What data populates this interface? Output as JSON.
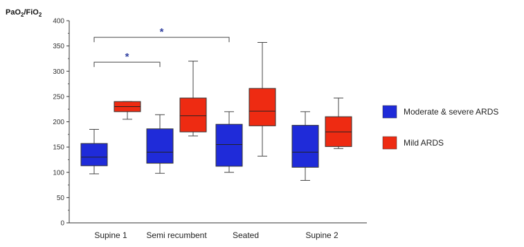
{
  "chart_data": {
    "type": "box",
    "ylabel_main": "PaO",
    "ylabel_sub1": "2",
    "ylabel_mid": "/FiO",
    "ylabel_sub2": "2",
    "ylim": [
      0,
      400
    ],
    "yticks": [
      0,
      50,
      100,
      150,
      200,
      250,
      300,
      350,
      400
    ],
    "categories": [
      "Supine 1",
      "Semi recumbent",
      "Seated",
      "Supine 2"
    ],
    "series": [
      {
        "name": "Moderate & severe ARDS",
        "color": "#1f2bd9",
        "boxes": [
          {
            "whisker_low": 97,
            "q1": 113,
            "median": 130,
            "q3": 157,
            "whisker_high": 185
          },
          {
            "whisker_low": 98,
            "q1": 118,
            "median": 140,
            "q3": 186,
            "whisker_high": 214
          },
          {
            "whisker_low": 100,
            "q1": 112,
            "median": 155,
            "q3": 195,
            "whisker_high": 220
          },
          {
            "whisker_low": 84,
            "q1": 110,
            "median": 140,
            "q3": 193,
            "whisker_high": 220
          }
        ]
      },
      {
        "name": "Mild ARDS",
        "color": "#ee2b12",
        "boxes": [
          {
            "whisker_low": 205,
            "q1": 220,
            "median": 230,
            "q3": 240,
            "whisker_high": 240
          },
          {
            "whisker_low": 172,
            "q1": 180,
            "median": 212,
            "q3": 247,
            "whisker_high": 320
          },
          {
            "whisker_low": 132,
            "q1": 192,
            "median": 221,
            "q3": 266,
            "whisker_high": 357
          },
          {
            "whisker_low": 147,
            "q1": 151,
            "median": 180,
            "q3": 210,
            "whisker_high": 247
          }
        ]
      }
    ],
    "significance": [
      {
        "from": 0,
        "to": 1,
        "y": 318,
        "label": "*"
      },
      {
        "from": 0,
        "to": 2,
        "y": 367,
        "label": "*"
      }
    ],
    "legend_position": "right"
  }
}
